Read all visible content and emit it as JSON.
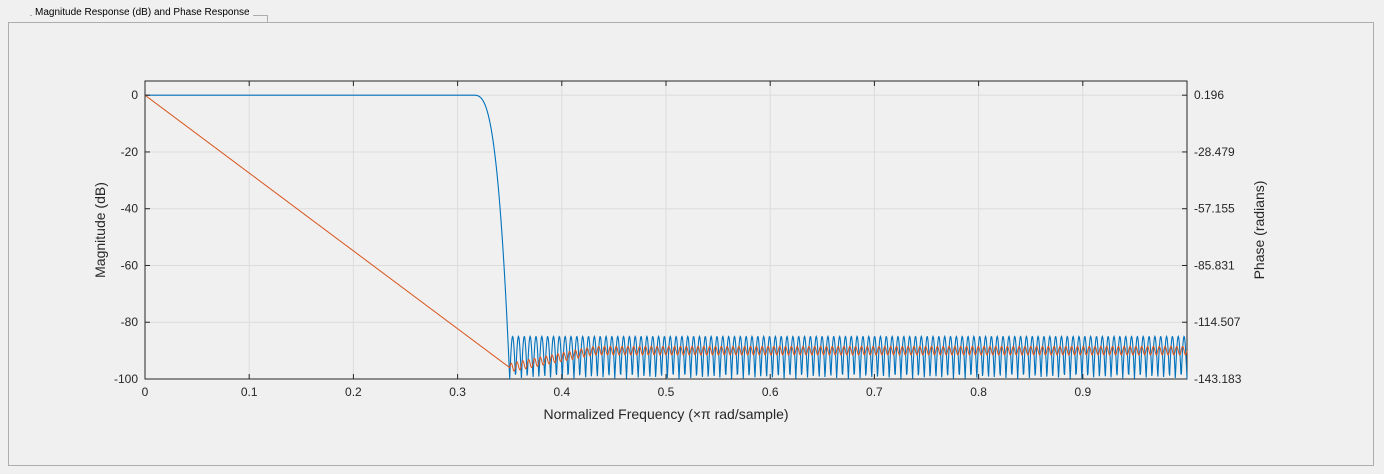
{
  "panel": {
    "title": "Magnitude Response (dB) and Phase Response"
  },
  "colors": {
    "magnitude": "#0072bd",
    "phase": "#d95319",
    "grid": "#dcdcdc",
    "axis": "#262626"
  },
  "chart_data": {
    "type": "line",
    "xlabel": "Normalized Frequency (×π rad/sample)",
    "ylabel": "Magnitude (dB)",
    "y2label": "Phase (radians)",
    "xlim": [
      0,
      1
    ],
    "ylim": [
      -100,
      5
    ],
    "y2lim": [
      -143.183,
      0.196
    ],
    "grid": true,
    "x_ticks": [
      "0",
      "0.1",
      "0.2",
      "0.3",
      "0.4",
      "0.5",
      "0.6",
      "0.7",
      "0.8",
      "0.9"
    ],
    "y_ticks": [
      "0",
      "-20",
      "-40",
      "-60",
      "-80",
      "-100"
    ],
    "y2_ticks": [
      "0.196",
      "-28.479",
      "-57.155",
      "-85.831",
      "-114.507",
      "-143.183"
    ],
    "series": [
      {
        "axis": "left",
        "passband_end": 0.315,
        "cutoff": 0.35,
        "stopband_peak_db": -85,
        "stopband_floor_db": -100,
        "ripples": 116
      },
      {
        "axis": "left",
        "start_db": 0,
        "end_of_linear_db": -96,
        "end_of_linear_x": 0.35,
        "stopband_center_db": -90,
        "stopband_amplitude_db": 1.5
      }
    ]
  }
}
